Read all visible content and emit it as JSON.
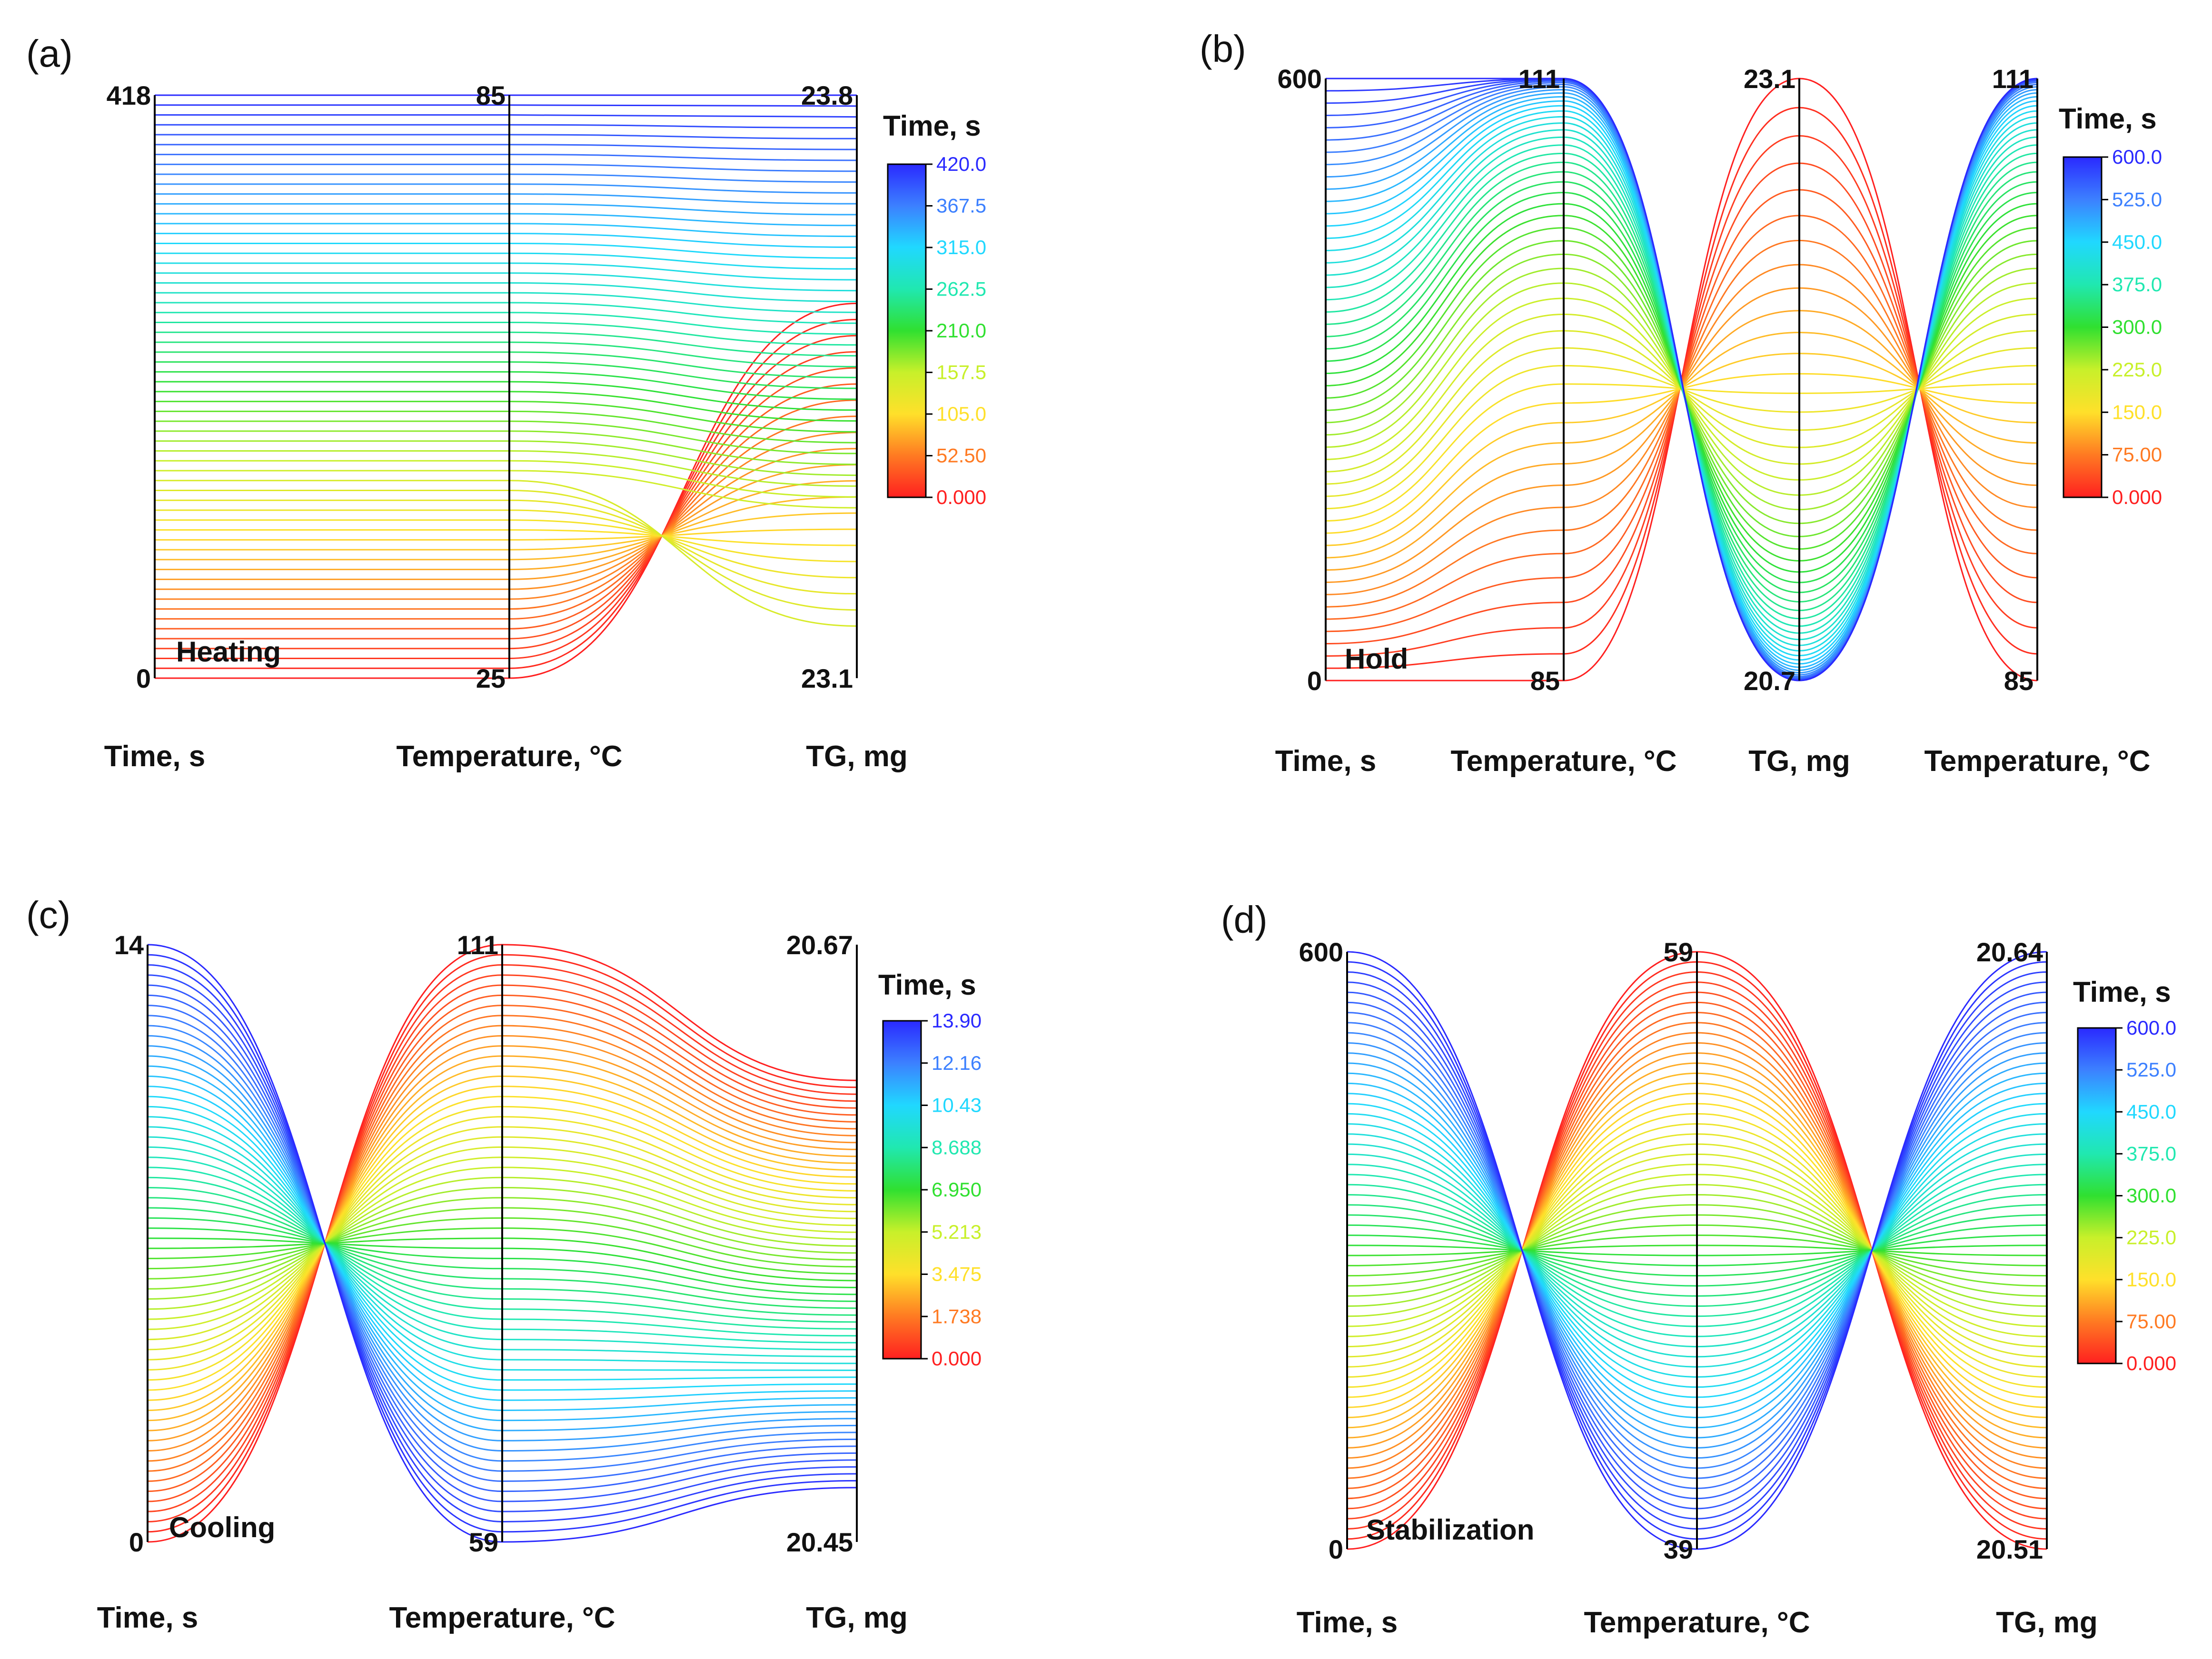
{
  "chart_data": [
    {
      "panel_label": "(a)",
      "type": "parallel-coordinates",
      "title": "",
      "annotation": "Heating",
      "color_by": "Time, s",
      "colorbar": {
        "title": "Time, s",
        "ticks": [
          "0.000",
          "52.50",
          "105.0",
          "157.5",
          "210.0",
          "262.5",
          "315.0",
          "367.5",
          "420.0"
        ],
        "range": [
          0,
          420
        ]
      },
      "axes": [
        {
          "label": "Time, s",
          "min": "0",
          "max": "418",
          "range": [
            0,
            418
          ]
        },
        {
          "label": "Temperature, °C",
          "min": "25",
          "max": "85",
          "range": [
            25,
            85
          ]
        },
        {
          "label": "TG, mg",
          "min": "23.1",
          "max": "23.8",
          "range": [
            23.1,
            23.8
          ]
        }
      ],
      "line_count": 60,
      "profiles": {
        "Temperature, °C": {
          "kind": "linear",
          "from": 25,
          "to": 85
        },
        "TG, mg": {
          "kind": "linear",
          "from": 23.55,
          "to": 23.15,
          "band_low": 23.3,
          "band_high": 23.8,
          "band_from": 0.35
        }
      }
    },
    {
      "panel_label": "(b)",
      "type": "parallel-coordinates",
      "title": "",
      "annotation": "Hold",
      "color_by": "Time, s",
      "colorbar": {
        "title": "Time, s",
        "ticks": [
          "0.000",
          "75.00",
          "150.0",
          "225.0",
          "300.0",
          "375.0",
          "450.0",
          "525.0",
          "600.0"
        ],
        "range": [
          0,
          600
        ]
      },
      "axes": [
        {
          "label": "Time, s",
          "min": "0",
          "max": "600",
          "range": [
            0,
            600
          ]
        },
        {
          "label": "Temperature, °C",
          "min": "85",
          "max": "111",
          "range": [
            85,
            111
          ]
        },
        {
          "label": "TG, mg",
          "min": "20.7",
          "max": "23.1",
          "range": [
            20.7,
            23.1
          ]
        },
        {
          "label": "Temperature, °C",
          "min": "85",
          "max": "111",
          "range": [
            85,
            111
          ]
        }
      ],
      "line_count": 50,
      "profiles": {
        "Temperature, °C": {
          "kind": "saturating",
          "from": 85,
          "to": 111
        },
        "TG, mg": {
          "kind": "decaying",
          "from": 23.1,
          "to": 20.7
        }
      }
    },
    {
      "panel_label": "(c)",
      "type": "parallel-coordinates",
      "title": "",
      "annotation": "Cooling",
      "color_by": "Time, s",
      "colorbar": {
        "title": "Time, s",
        "ticks": [
          "0.000",
          "1.738",
          "3.475",
          "5.213",
          "6.950",
          "8.688",
          "10.43",
          "12.16",
          "13.90"
        ],
        "range": [
          0,
          13.9
        ]
      },
      "axes": [
        {
          "label": "Time, s",
          "min": "0",
          "max": "14",
          "range": [
            0,
            14
          ]
        },
        {
          "label": "Temperature, °C",
          "min": "59",
          "max": "111",
          "range": [
            59,
            111
          ]
        },
        {
          "label": "TG, mg",
          "min": "20.45",
          "max": "20.67",
          "range": [
            20.45,
            20.67
          ]
        }
      ],
      "line_count": 60,
      "profiles": {
        "Temperature, °C": {
          "kind": "linear",
          "from": 111,
          "to": 59
        },
        "TG, mg": {
          "kind": "linear",
          "from": 20.62,
          "to": 20.47
        }
      }
    },
    {
      "panel_label": "(d)",
      "type": "parallel-coordinates",
      "title": "",
      "annotation": "Stabilization",
      "color_by": "Time, s",
      "colorbar": {
        "title": "Time, s",
        "ticks": [
          "0.000",
          "75.00",
          "150.0",
          "225.0",
          "300.0",
          "375.0",
          "450.0",
          "525.0",
          "600.0"
        ],
        "range": [
          0,
          600
        ]
      },
      "axes": [
        {
          "label": "Time, s",
          "min": "0",
          "max": "600",
          "range": [
            0,
            600
          ]
        },
        {
          "label": "Temperature, °C",
          "min": "39",
          "max": "59",
          "range": [
            39,
            59
          ]
        },
        {
          "label": "TG, mg",
          "min": "20.51",
          "max": "20.64",
          "range": [
            20.51,
            20.64
          ]
        }
      ],
      "line_count": 60,
      "profiles": {
        "Temperature, °C": {
          "kind": "linear",
          "from": 59,
          "to": 39
        },
        "TG, mg": {
          "kind": "linear",
          "from": 20.51,
          "to": 20.64
        }
      }
    }
  ]
}
